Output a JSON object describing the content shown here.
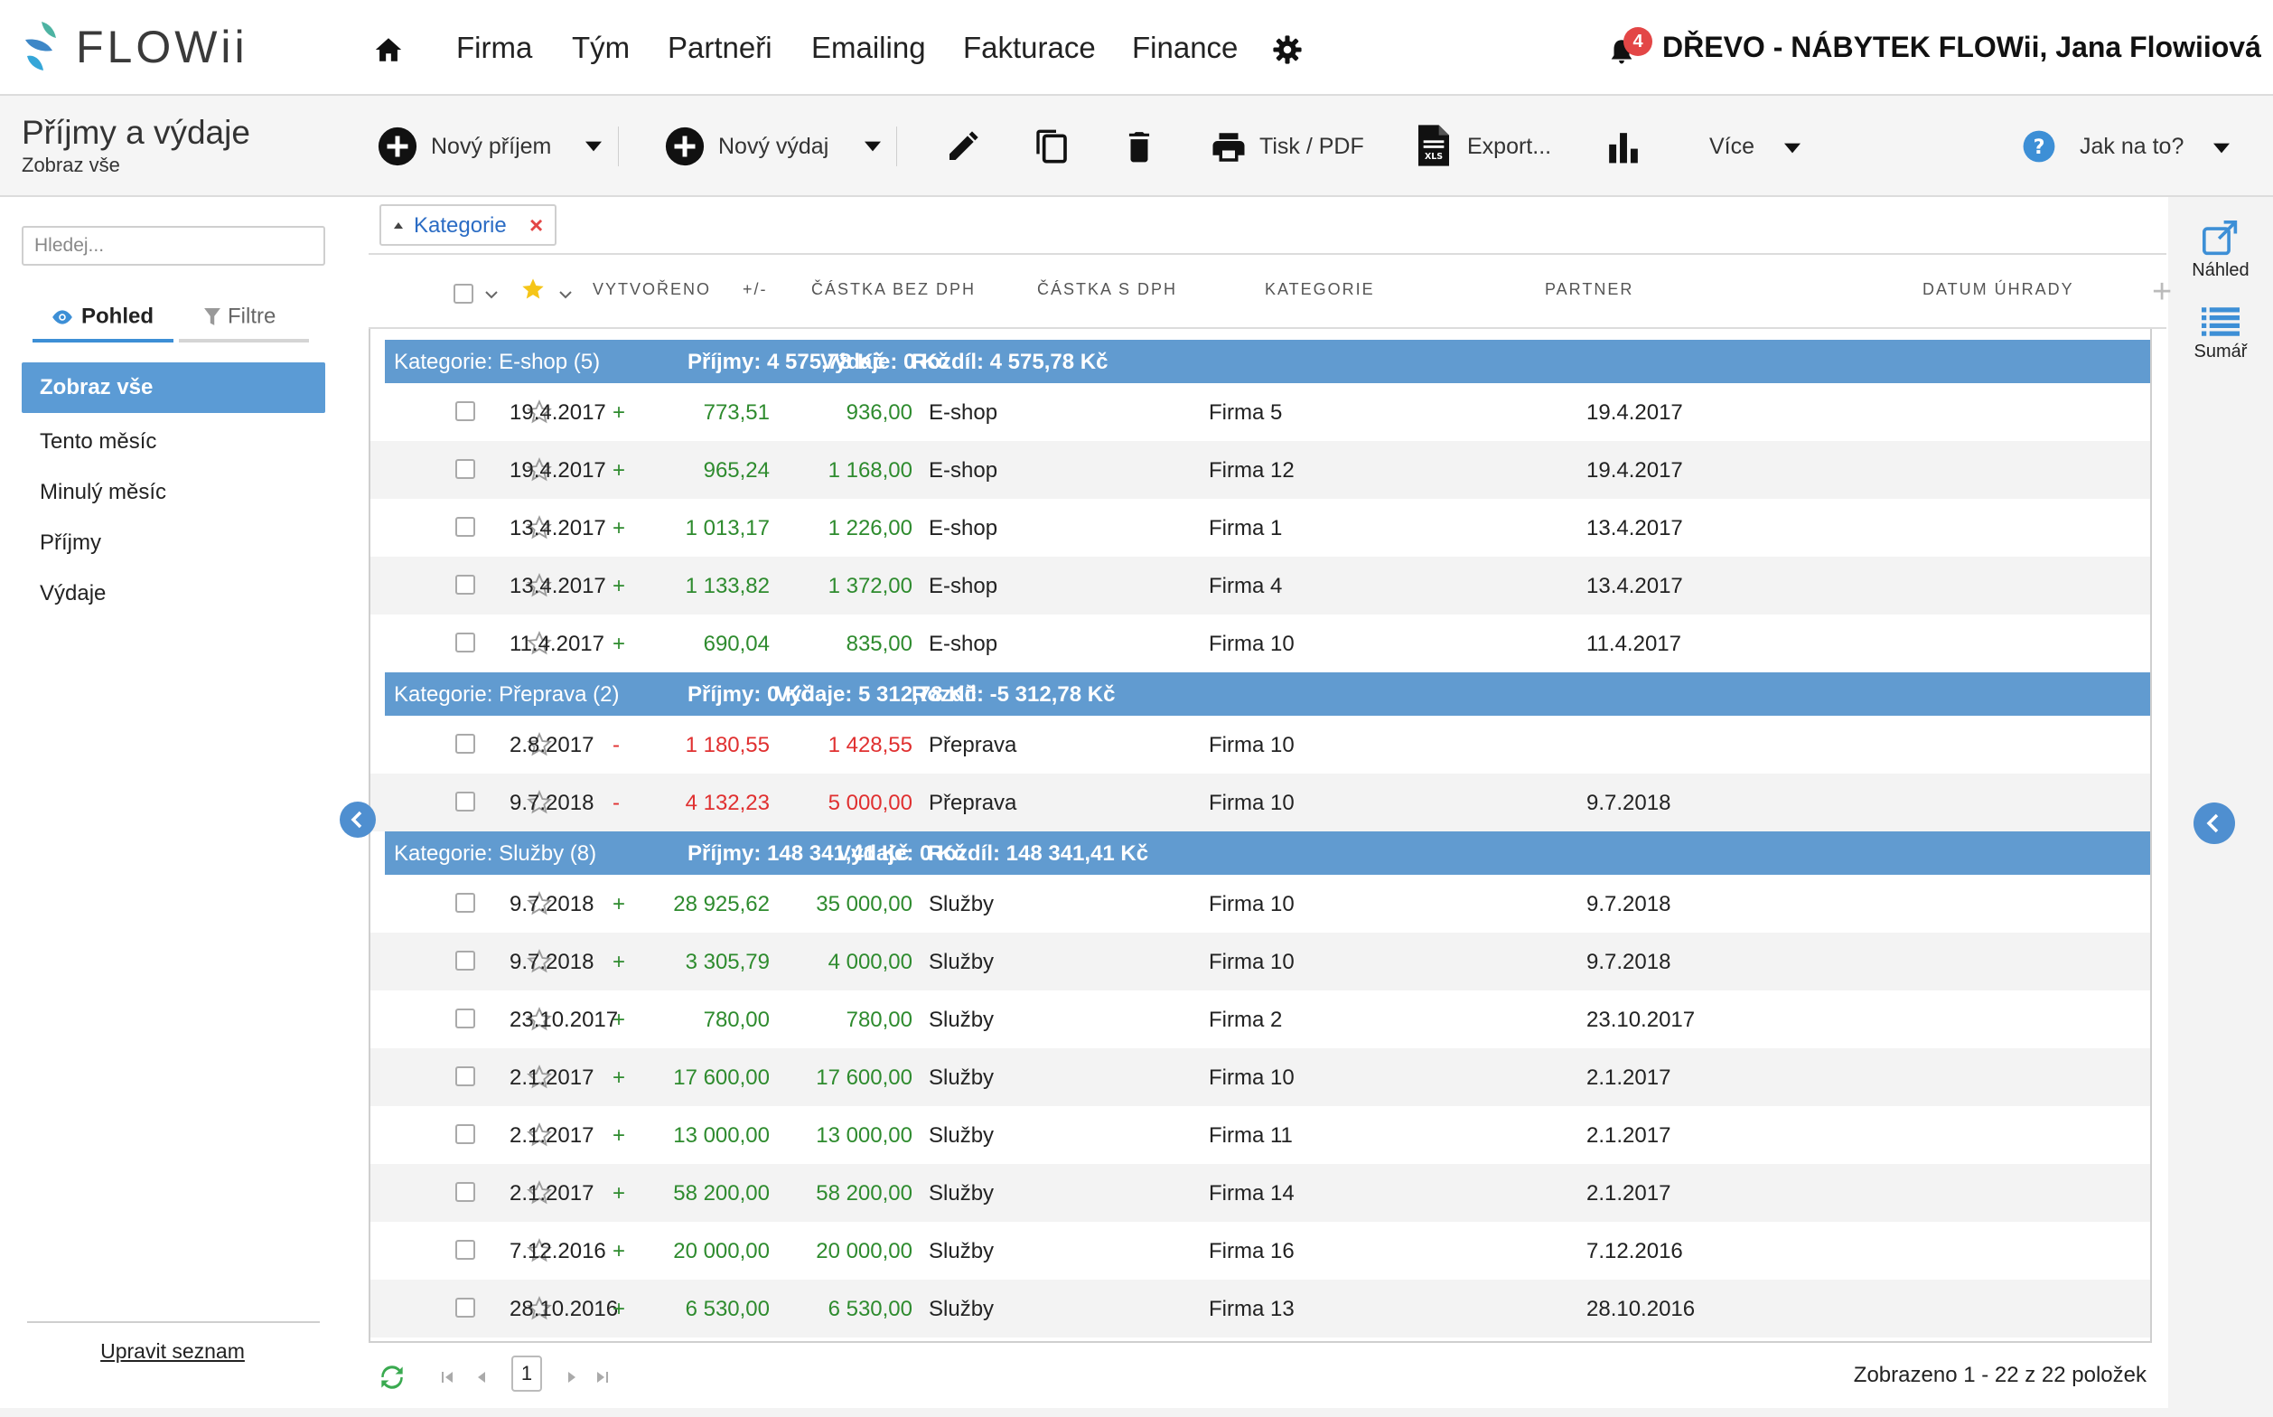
{
  "app": {
    "logo_text": "FLOWii"
  },
  "nav": {
    "items": [
      "Firma",
      "Tým",
      "Partneři",
      "Emailing",
      "Fakturace",
      "Finance"
    ],
    "notifications_count": "4",
    "user_label": "DŘEVO - NÁBYTEK FLOWii, Jana Flowiiová"
  },
  "page": {
    "title": "Příjmy a výdaje",
    "subtitle": "Zobraz vše"
  },
  "toolbar": {
    "new_income": "Nový příjem",
    "new_expense": "Nový výdaj",
    "print": "Tisk / PDF",
    "export": "Export...",
    "more": "Více",
    "help": "Jak na to?"
  },
  "sidebar": {
    "search_placeholder": "Hledej...",
    "tab_view": "Pohled",
    "tab_filters": "Filtre",
    "items": [
      "Zobraz vše",
      "Tento měsíc",
      "Minulý měsíc",
      "Příjmy",
      "Výdaje"
    ],
    "active_item": "Zobraz vše",
    "edit_list": "Upravit seznam"
  },
  "grouping": {
    "chip_label": "Kategorie"
  },
  "table": {
    "columns": [
      "VYTVOŘENO",
      "+/-",
      "ČÁSTKA BEZ DPH",
      "ČÁSTKA S DPH",
      "KATEGORIE",
      "PARTNER",
      "DATUM ÚHRADY"
    ],
    "groups": [
      {
        "label": "Kategorie: E-shop (5)",
        "income": "Příjmy: 4 575,78 Kč",
        "expense": "Výdaje: 0 Kč",
        "diff": "Rozdíl: 4 575,78 Kč",
        "rows": [
          {
            "created": "19.4.2017",
            "sign": "+",
            "net": "773,51",
            "gross": "936,00",
            "category": "E-shop",
            "partner": "Firma 5",
            "paid": "19.4.2017"
          },
          {
            "created": "19.4.2017",
            "sign": "+",
            "net": "965,24",
            "gross": "1 168,00",
            "category": "E-shop",
            "partner": "Firma 12",
            "paid": "19.4.2017"
          },
          {
            "created": "13.4.2017",
            "sign": "+",
            "net": "1 013,17",
            "gross": "1 226,00",
            "category": "E-shop",
            "partner": "Firma 1",
            "paid": "13.4.2017"
          },
          {
            "created": "13.4.2017",
            "sign": "+",
            "net": "1 133,82",
            "gross": "1 372,00",
            "category": "E-shop",
            "partner": "Firma 4",
            "paid": "13.4.2017"
          },
          {
            "created": "11.4.2017",
            "sign": "+",
            "net": "690,04",
            "gross": "835,00",
            "category": "E-shop",
            "partner": "Firma 10",
            "paid": "11.4.2017"
          }
        ]
      },
      {
        "label": "Kategorie: Přeprava (2)",
        "income": "Příjmy: 0 Kč",
        "expense": "Výdaje: 5 312,78 Kč",
        "diff": "Rozdíl: -5 312,78 Kč",
        "rows": [
          {
            "created": "2.8.2017",
            "sign": "-",
            "net": "1 180,55",
            "gross": "1 428,55",
            "category": "Přeprava",
            "partner": "Firma 10",
            "paid": ""
          },
          {
            "created": "9.7.2018",
            "sign": "-",
            "net": "4 132,23",
            "gross": "5 000,00",
            "category": "Přeprava",
            "partner": "Firma 10",
            "paid": "9.7.2018"
          }
        ]
      },
      {
        "label": "Kategorie: Služby (8)",
        "income": "Příjmy: 148 341,41 Kč",
        "expense": "Výdaje: 0 Kč",
        "diff": "Rozdíl: 148 341,41 Kč",
        "rows": [
          {
            "created": "9.7.2018",
            "sign": "+",
            "net": "28 925,62",
            "gross": "35 000,00",
            "category": "Služby",
            "partner": "Firma 10",
            "paid": "9.7.2018"
          },
          {
            "created": "9.7.2018",
            "sign": "+",
            "net": "3 305,79",
            "gross": "4 000,00",
            "category": "Služby",
            "partner": "Firma 10",
            "paid": "9.7.2018"
          },
          {
            "created": "23.10.2017",
            "sign": "+",
            "net": "780,00",
            "gross": "780,00",
            "category": "Služby",
            "partner": "Firma 2",
            "paid": "23.10.2017"
          },
          {
            "created": "2.1.2017",
            "sign": "+",
            "net": "17 600,00",
            "gross": "17 600,00",
            "category": "Služby",
            "partner": "Firma 10",
            "paid": "2.1.2017"
          },
          {
            "created": "2.1.2017",
            "sign": "+",
            "net": "13 000,00",
            "gross": "13 000,00",
            "category": "Služby",
            "partner": "Firma 11",
            "paid": "2.1.2017"
          },
          {
            "created": "2.1.2017",
            "sign": "+",
            "net": "58 200,00",
            "gross": "58 200,00",
            "category": "Služby",
            "partner": "Firma 14",
            "paid": "2.1.2017"
          },
          {
            "created": "7.12.2016",
            "sign": "+",
            "net": "20 000,00",
            "gross": "20 000,00",
            "category": "Služby",
            "partner": "Firma 16",
            "paid": "7.12.2016"
          },
          {
            "created": "28.10.2016",
            "sign": "+",
            "net": "6 530,00",
            "gross": "6 530,00",
            "category": "Služby",
            "partner": "Firma 13",
            "paid": "28.10.2016"
          }
        ]
      }
    ]
  },
  "pager": {
    "current_page": "1",
    "summary": "Zobrazeno 1 - 22 z 22 položek"
  },
  "right_panel": {
    "preview": "Náhled",
    "summary": "Sumář"
  },
  "colors": {
    "accent": "#5b9bd5",
    "group_bar": "#619bd0",
    "income": "#2e8b2e",
    "expense": "#e03030",
    "star": "#f5c518"
  },
  "icons": [
    "home-icon",
    "gear-icon",
    "bell-icon",
    "plus-circle-icon",
    "pencil-icon",
    "copy-icon",
    "trash-icon",
    "printer-icon",
    "xls-file-icon",
    "bar-chart-icon",
    "help-icon",
    "eye-icon",
    "filter-icon",
    "star-icon",
    "refresh-icon",
    "external-link-icon",
    "list-icon"
  ]
}
